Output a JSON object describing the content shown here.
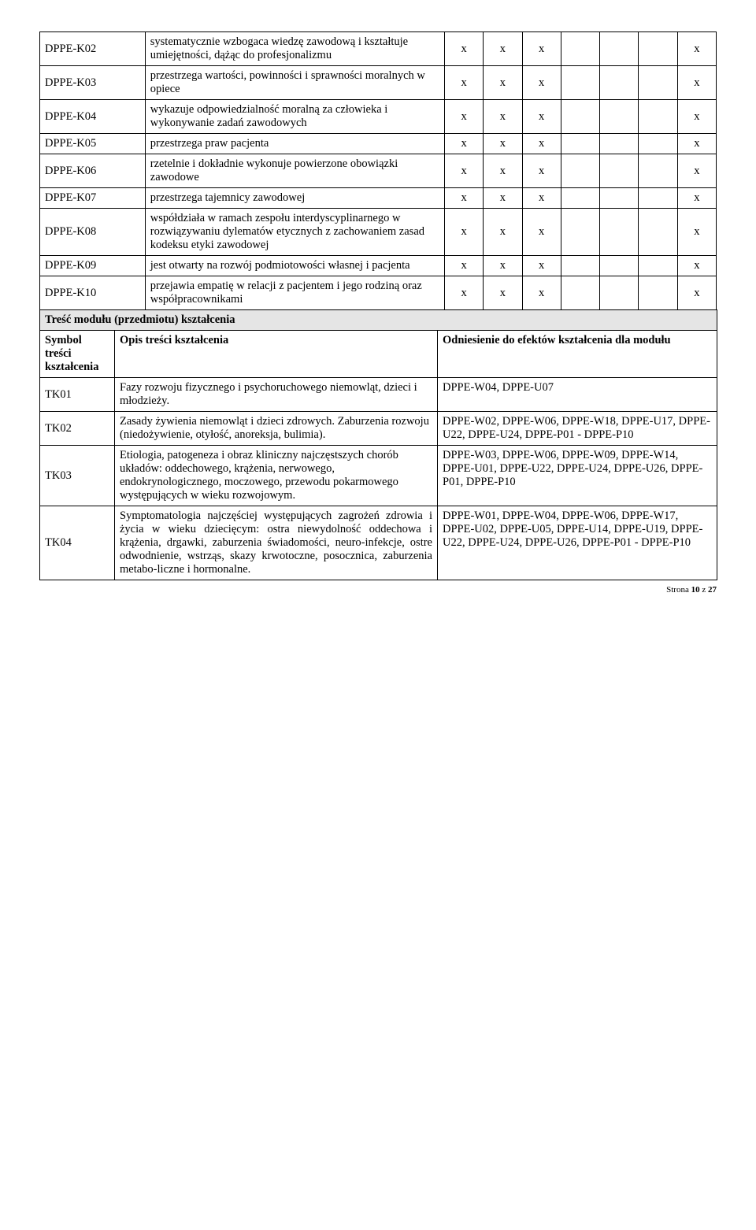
{
  "matrix": {
    "col_widths": [
      "95",
      "270",
      "35",
      "35",
      "35",
      "35",
      "35",
      "35",
      "35"
    ],
    "rows": [
      {
        "code": "DPPE-K02",
        "desc": "systematycznie wzbogaca wiedzę zawodową i kształtuje umiejętności, dążąc do profesjonalizmu",
        "marks": [
          "x",
          "x",
          "x",
          "",
          "",
          "",
          "x"
        ]
      },
      {
        "code": "DPPE-K03",
        "desc": "przestrzega wartości, powinności i sprawności moralnych w opiece",
        "marks": [
          "x",
          "x",
          "x",
          "",
          "",
          "",
          "x"
        ]
      },
      {
        "code": "DPPE-K04",
        "desc": "wykazuje odpowiedzialność moralną za człowieka i wykonywanie zadań zawodowych",
        "marks": [
          "x",
          "x",
          "x",
          "",
          "",
          "",
          "x"
        ]
      },
      {
        "code": "DPPE-K05",
        "desc": "przestrzega praw pacjenta",
        "marks": [
          "x",
          "x",
          "x",
          "",
          "",
          "",
          "x"
        ]
      },
      {
        "code": "DPPE-K06",
        "desc": "rzetelnie i dokładnie wykonuje powierzone obowiązki zawodowe",
        "marks": [
          "x",
          "x",
          "x",
          "",
          "",
          "",
          "x"
        ]
      },
      {
        "code": "DPPE-K07",
        "desc": "przestrzega tajemnicy zawodowej",
        "marks": [
          "x",
          "x",
          "x",
          "",
          "",
          "",
          "x"
        ]
      },
      {
        "code": "DPPE-K08",
        "desc": "współdziała w ramach zespołu interdyscyplinarnego w rozwiązywaniu dylematów etycznych z zachowaniem zasad kodeksu  etyki zawodowej",
        "marks": [
          "x",
          "x",
          "x",
          "",
          "",
          "",
          "x"
        ]
      },
      {
        "code": "DPPE-K09",
        "desc": "jest otwarty na rozwój podmiotowości własnej i pacjenta",
        "marks": [
          "x",
          "x",
          "x",
          "",
          "",
          "",
          "x"
        ]
      },
      {
        "code": "DPPE-K10",
        "desc": "przejawia empatię w relacji z pacjentem i jego rodziną oraz współpracownikami",
        "marks": [
          "x",
          "x",
          "x",
          "",
          "",
          "",
          "x"
        ]
      }
    ]
  },
  "section_header": "Treść modułu (przedmiotu) kształcenia",
  "content_table": {
    "col_widths": [
      "95",
      "410",
      "355"
    ],
    "headers": {
      "c1": "Symbol treści kształcenia",
      "c2": "Opis treści kształcenia",
      "c3": "Odniesienie do efektów kształcenia dla modułu"
    },
    "rows": [
      {
        "code": "TK01",
        "desc": "Fazy rozwoju fizycznego i psychoruchowego niemowląt, dzieci i młodzieży.",
        "ref": "DPPE-W04, DPPE-U07"
      },
      {
        "code": "TK02",
        "desc": "Zasady żywienia niemowląt i dzieci zdrowych. Zaburzenia rozwoju (niedożywienie, otyłość, anoreksja, bulimia).",
        "ref": "DPPE-W02, DPPE-W06, DPPE-W18, DPPE-U17, DPPE-U22, DPPE-U24, DPPE-P01 - DPPE-P10"
      },
      {
        "code": "TK03",
        "desc": "Etiologia, patogeneza i obraz kliniczny najczęstszych chorób układów: oddechowego, krążenia, nerwowego, endokrynologicznego, moczowego, przewodu pokarmowego występujących w wieku rozwojowym.",
        "ref": "DPPE-W03, DPPE-W06, DPPE-W09, DPPE-W14, DPPE-U01, DPPE-U22, DPPE-U24, DPPE-U26, DPPE-P01, DPPE-P10"
      },
      {
        "code": "TK04",
        "desc": "Symptomatologia najczęściej występujących zagrożeń zdrowia i życia w wieku dziecięcym: ostra niewydolność oddechowa i krążenia, drgawki, zaburzenia świadomości, neuro-infekcje, ostre odwodnienie, wstrząs, skazy krwotoczne, posocznica, zaburzenia metabo-liczne i hormonalne.",
        "ref": "DPPE-W01, DPPE-W04, DPPE-W06, DPPE-W17, DPPE-U02, DPPE-U05, DPPE-U14, DPPE-U19, DPPE-U22, DPPE-U24, DPPE-U26, DPPE-P01 - DPPE-P10"
      }
    ]
  },
  "footer": {
    "page_label": "Strona ",
    "page_num": "10",
    "sep": " z ",
    "total": "27"
  }
}
